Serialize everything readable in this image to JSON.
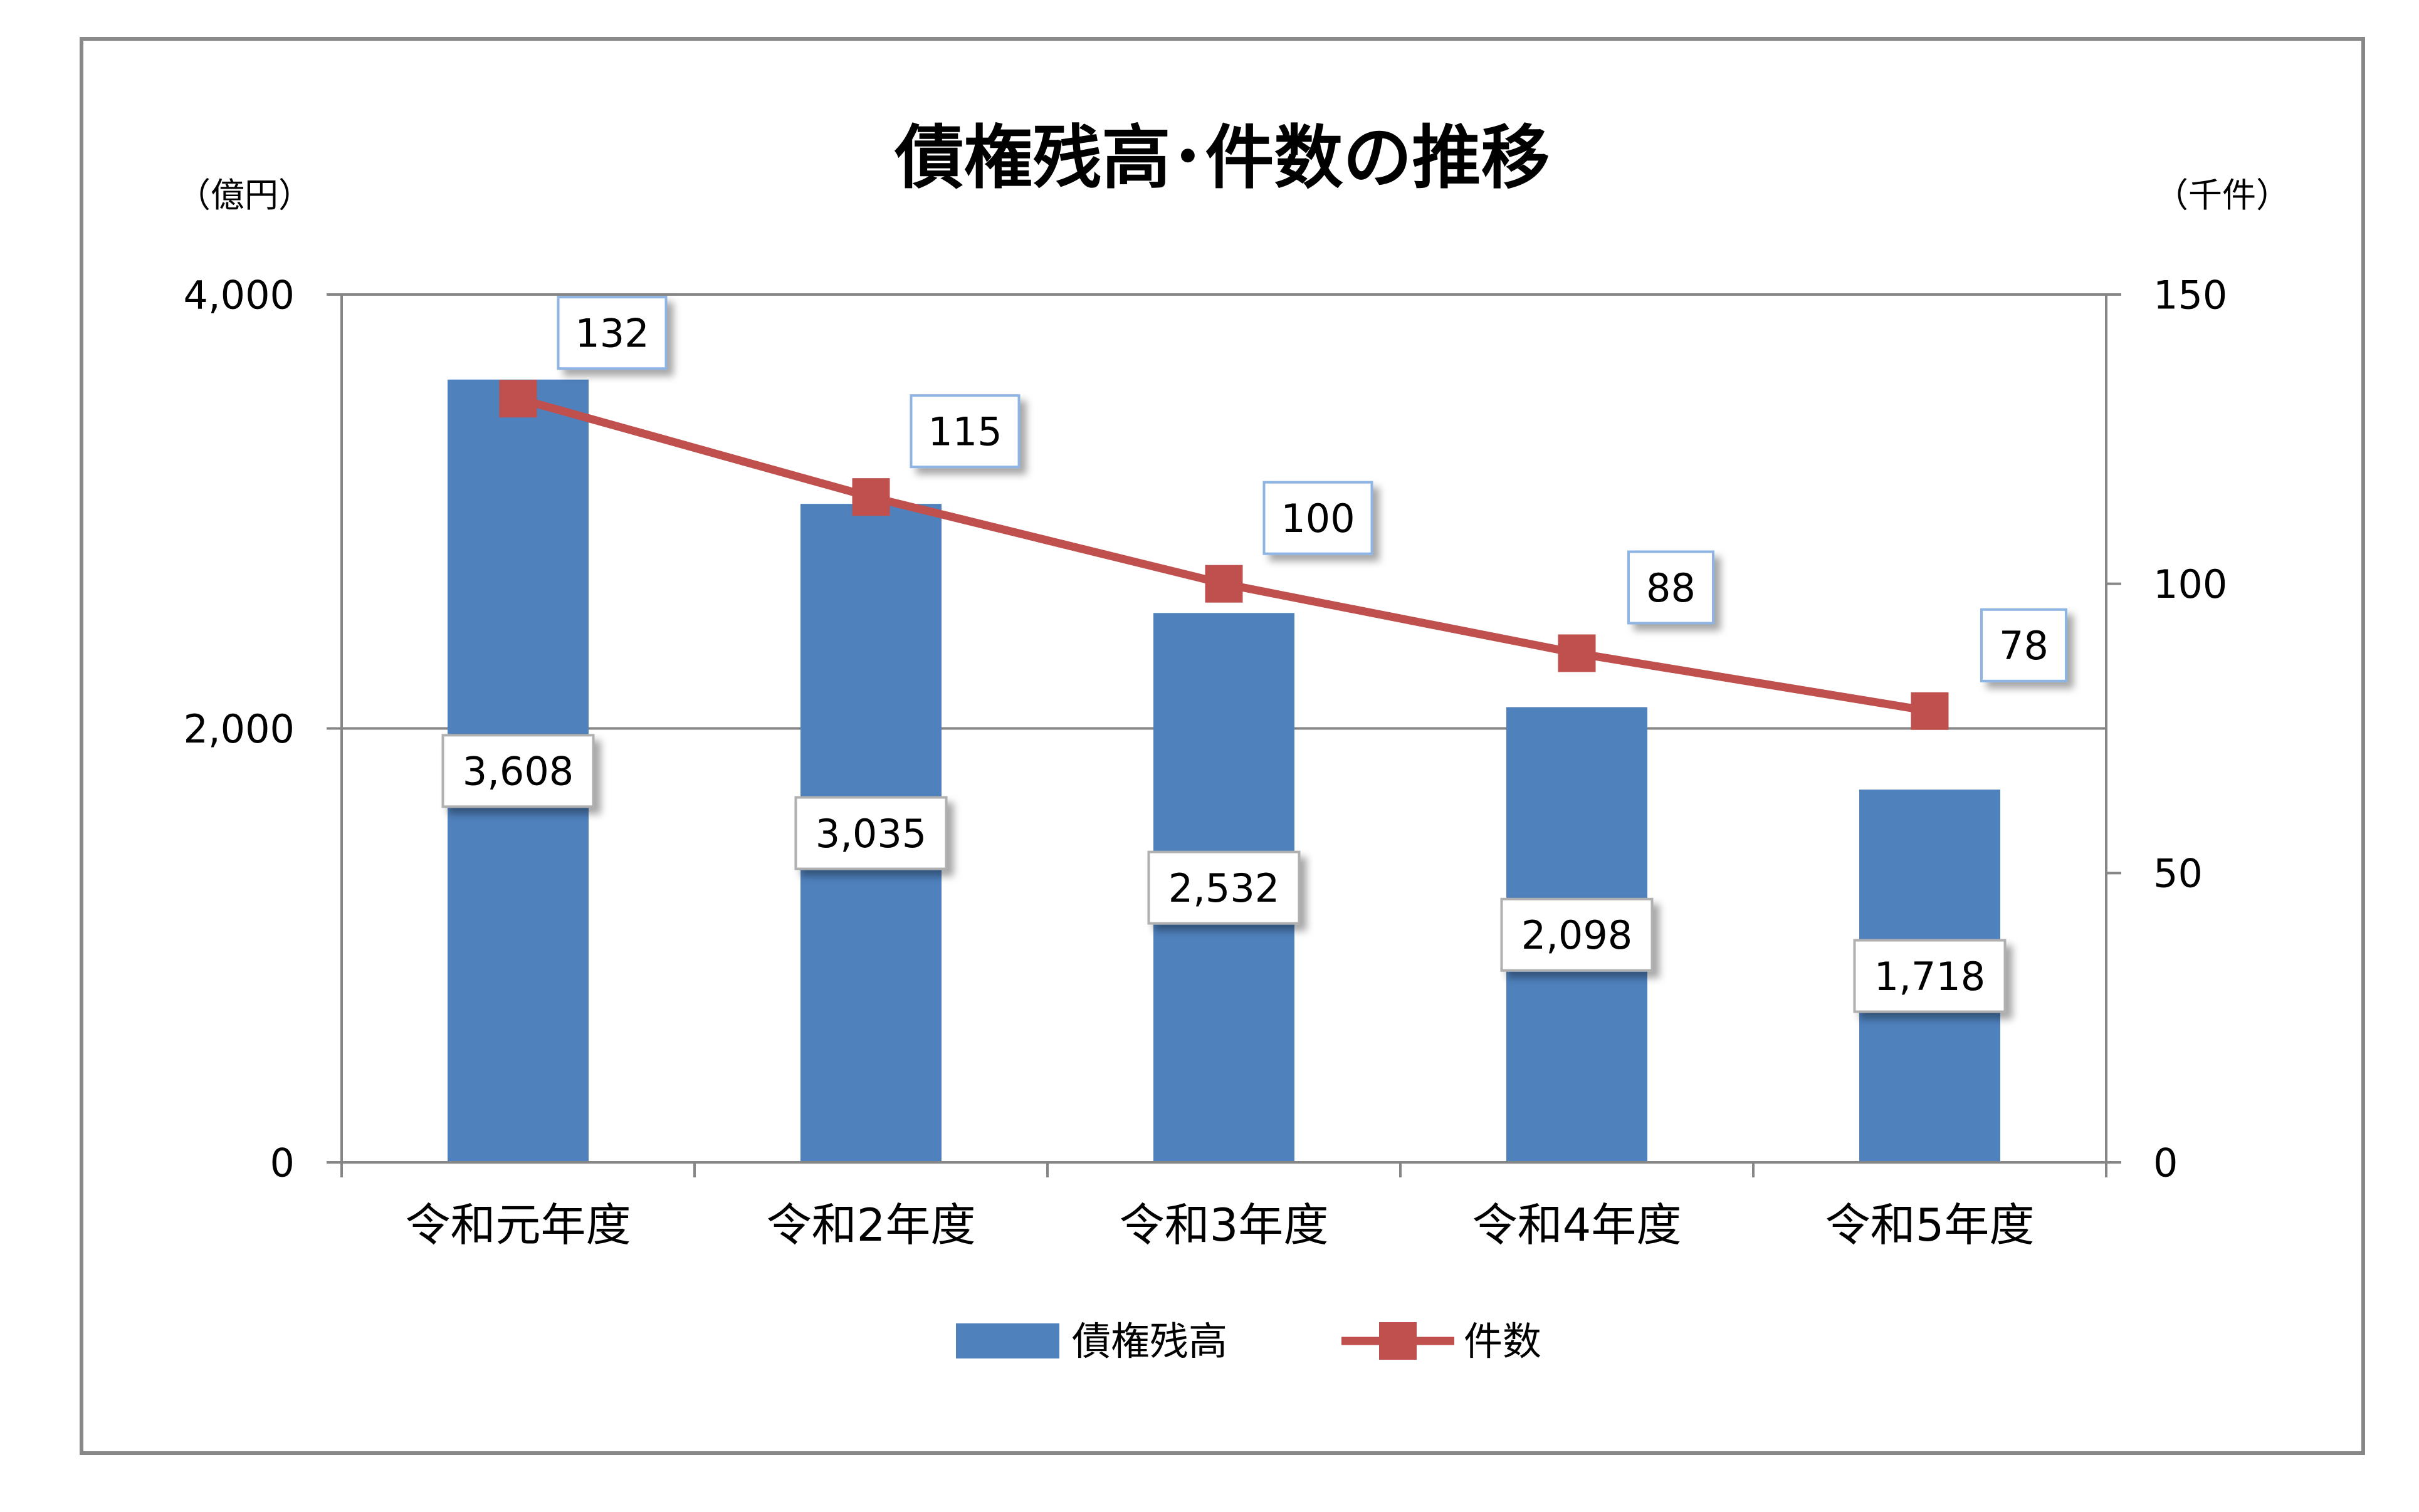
{
  "chart_data": {
    "type": "bar",
    "title": "債権残高･件数の推移",
    "categories": [
      "令和元年度",
      "令和2年度",
      "令和3年度",
      "令和4年度",
      "令和5年度"
    ],
    "series": [
      {
        "name": "債権残高",
        "type": "bar",
        "axis": "left",
        "color": "#4F81BD",
        "values": [
          3608,
          3035,
          2532,
          2098,
          1718
        ],
        "labels": [
          "3,608",
          "3,035",
          "2,532",
          "2,098",
          "1,718"
        ]
      },
      {
        "name": "件数",
        "type": "line",
        "axis": "right",
        "color": "#C0504D",
        "values": [
          132,
          115,
          100,
          88,
          78
        ],
        "labels": [
          "132",
          "115",
          "100",
          "88",
          "78"
        ]
      }
    ],
    "left_axis": {
      "unit": "（億円）",
      "ylim": [
        0,
        4000
      ],
      "ticks": [
        0,
        2000,
        4000
      ],
      "tick_labels": [
        "0",
        "2,000",
        "4,000"
      ]
    },
    "right_axis": {
      "unit": "（千件）",
      "ylim": [
        0,
        150
      ],
      "ticks": [
        0,
        50,
        100,
        150
      ],
      "tick_labels": [
        "0",
        "50",
        "100",
        "150"
      ]
    },
    "grid": true,
    "legend": "bottom"
  }
}
